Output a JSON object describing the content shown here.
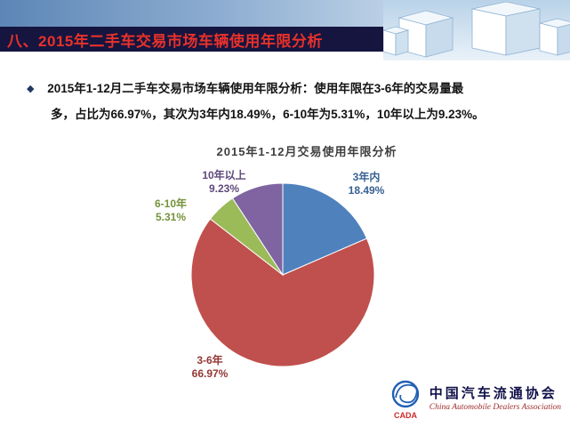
{
  "slide": {
    "title": "八、2015年二手车交易市场车辆使用年限分析",
    "bullet": "◆",
    "body_line1": "2015年1-12月二手车交易市场车辆使用年限分析：使用年限在3-6年的交易量最",
    "body_line2": "多，占比为66.97%，其次为3年内18.49%，6-10年为5.31%，10年以上为9.23%。"
  },
  "chart_data": {
    "type": "pie",
    "title": "2015年1-12月交易使用年限分析",
    "labels": [
      "3年内",
      "3-6年",
      "6-10年",
      "10年以上"
    ],
    "values": [
      18.49,
      66.97,
      5.31,
      9.23
    ],
    "pct_display": [
      "18.49%",
      "66.97%",
      "5.31%",
      "9.23%"
    ],
    "colors": [
      "#4F81BD",
      "#C0504D",
      "#9BBB59",
      "#8064A2"
    ],
    "label_colors": [
      "#376092",
      "#953734",
      "#76923C",
      "#5F497A"
    ],
    "start_angle": "top",
    "direction": "clockwise",
    "legend": "none",
    "slice_border_color": "#FFFFFF"
  },
  "footer": {
    "org_cn": "中国汽车流通协会",
    "org_en": "China Automobile Dealers Association",
    "logo_text": "CADA"
  }
}
